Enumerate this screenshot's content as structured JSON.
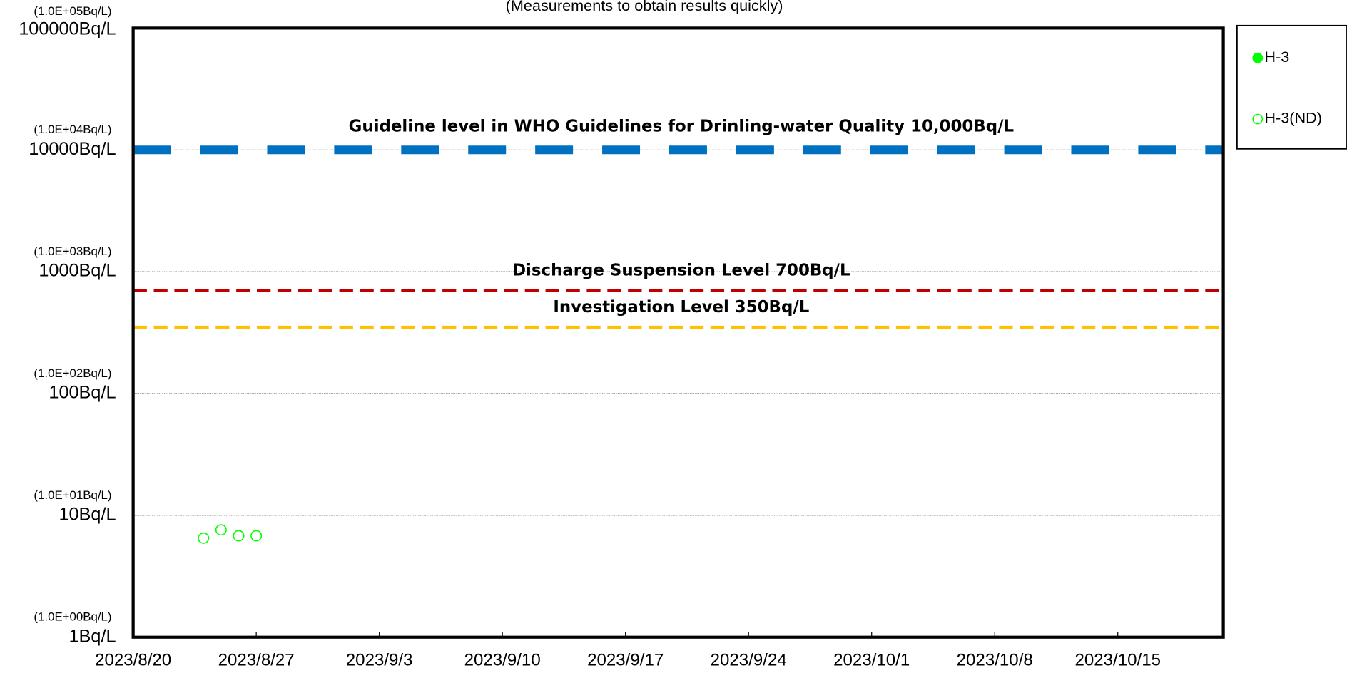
{
  "chart_data": {
    "type": "scatter",
    "subtitle": "(Measurements to obtain results quickly)",
    "xlim": [
      "2023-08-20",
      "2023-10-21"
    ],
    "xticks": [
      {
        "value": "2023-08-20",
        "label": "2023/8/20"
      },
      {
        "value": "2023-08-27",
        "label": "2023/8/27"
      },
      {
        "value": "2023-09-03",
        "label": "2023/9/3"
      },
      {
        "value": "2023-09-10",
        "label": "2023/9/10"
      },
      {
        "value": "2023-09-17",
        "label": "2023/9/17"
      },
      {
        "value": "2023-09-24",
        "label": "2023/9/24"
      },
      {
        "value": "2023-10-01",
        "label": "2023/10/1"
      },
      {
        "value": "2023-10-08",
        "label": "2023/10/8"
      },
      {
        "value": "2023-10-15",
        "label": "2023/10/15"
      }
    ],
    "ylim": [
      1,
      100000
    ],
    "log_y": true,
    "yticks": [
      {
        "value": 1,
        "label": "1Bq/L"
      },
      {
        "value": 10,
        "label": "10Bq/L"
      },
      {
        "value": 100,
        "label": "100Bq/L"
      },
      {
        "value": 1000,
        "label": "1000Bq/L"
      },
      {
        "value": 10000,
        "label": "10000Bq/L"
      },
      {
        "value": 100000,
        "label": "100000Bq/L"
      }
    ],
    "ytick_notes": [
      "(1.0E+00Bq/L)",
      "(1.0E+01Bq/L)",
      "(1.0E+02Bq/L)",
      "(1.0E+03Bq/L)",
      "(1.0E+04Bq/L)",
      "(1.0E+05Bq/L)"
    ],
    "grid": true,
    "reference_lines": [
      {
        "value": 10000,
        "label": "Guideline level in WHO Guidelines for Drinling-water Quality 10,000Bq/L",
        "color": "#0070c0"
      },
      {
        "value": 700,
        "label": "Discharge Suspension Level 700Bq/L",
        "color": "#c00000"
      },
      {
        "value": 350,
        "label": "Investigation Level 350Bq/L",
        "color": "#ffc000"
      }
    ],
    "legend": "right",
    "series": [
      {
        "name": "H-3",
        "color": "#00ff00",
        "filled": true,
        "x": [],
        "values": []
      },
      {
        "name": "H-3(ND)",
        "color": "#00ff00",
        "filled": false,
        "x": [
          "2023-08-24",
          "2023-08-25",
          "2023-08-26",
          "2023-08-27"
        ],
        "values": [
          6.5,
          7.6,
          6.8,
          6.8
        ]
      }
    ]
  }
}
